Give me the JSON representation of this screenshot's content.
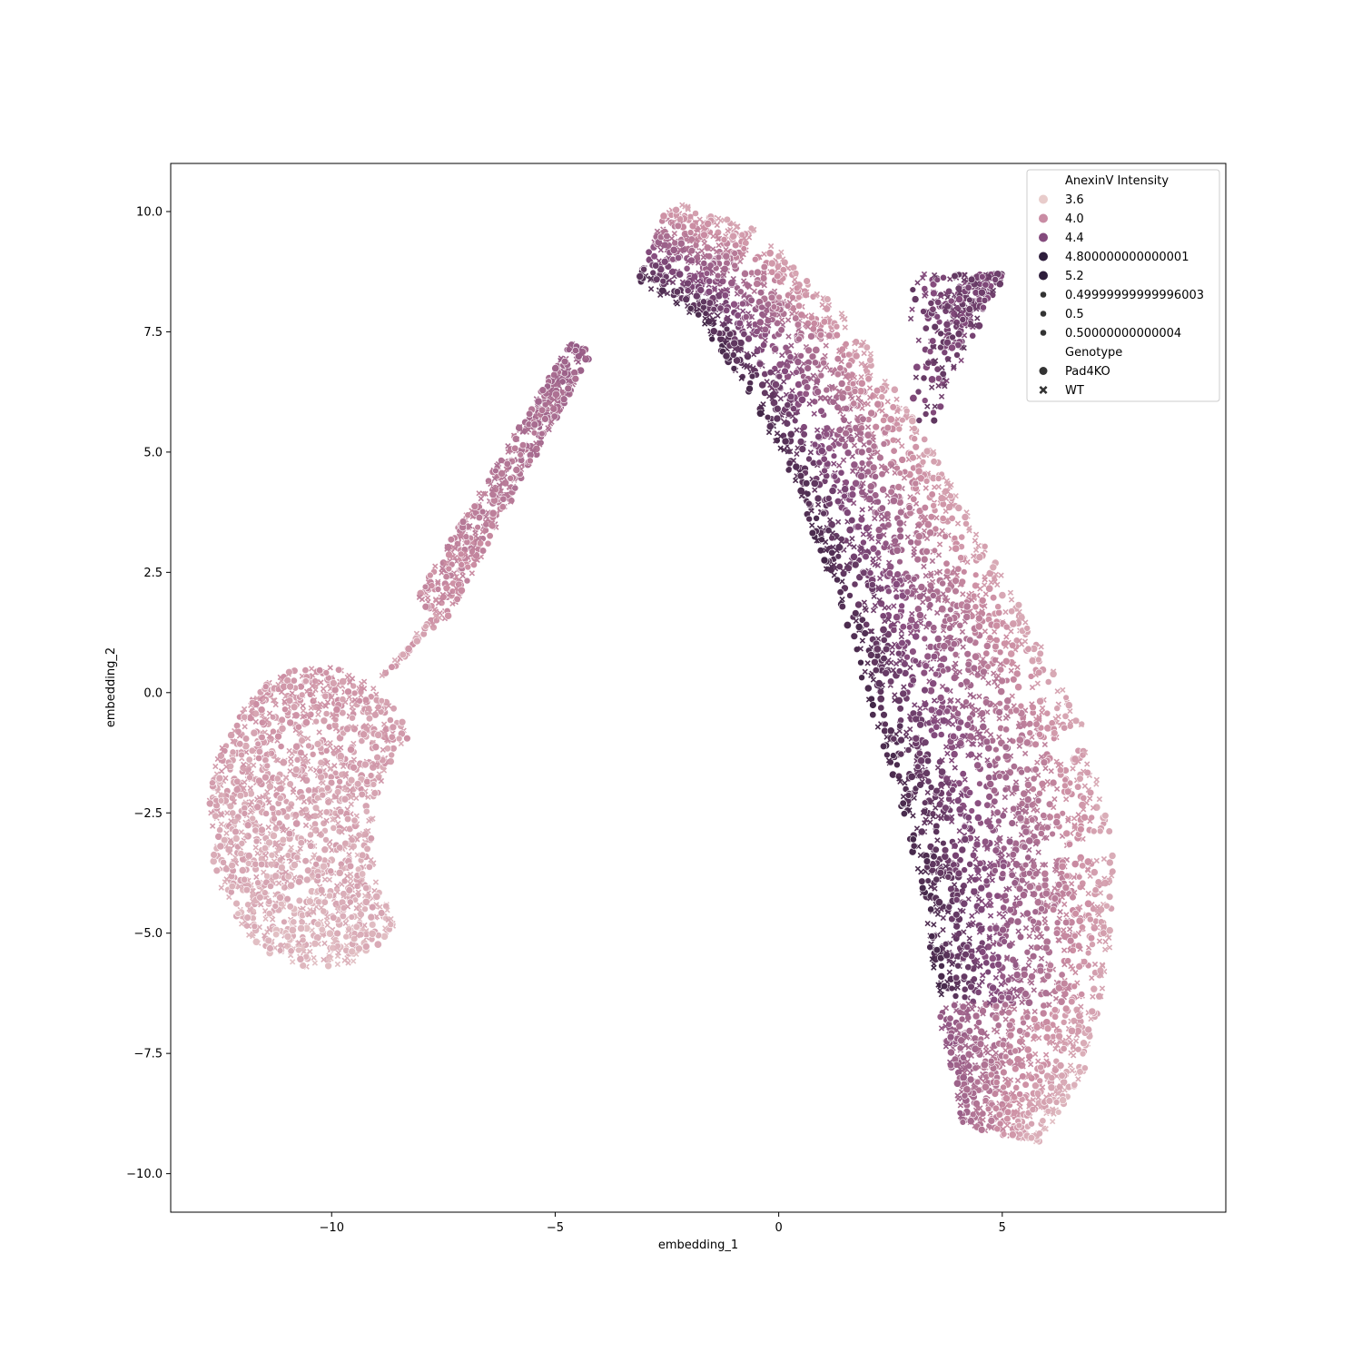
{
  "chart_data": {
    "type": "scatter",
    "title": "",
    "xlabel": "embedding_1",
    "ylabel": "embedding_2",
    "xlim": [
      -13.6,
      10.0
    ],
    "ylim": [
      -10.8,
      11.0
    ],
    "xticks": [
      -10,
      -5,
      0,
      5
    ],
    "xtick_labels": [
      "−10",
      "−5",
      "0",
      "5"
    ],
    "yticks": [
      -10.0,
      -7.5,
      -5.0,
      -2.5,
      0.0,
      2.5,
      5.0,
      7.5,
      10.0
    ],
    "ytick_labels": [
      "−10.0",
      "−7.5",
      "−5.0",
      "−2.5",
      "0.0",
      "2.5",
      "5.0",
      "7.5",
      "10.0"
    ],
    "grid": false,
    "legend_position": "top-right",
    "legend": {
      "hue_title": "AnexinV Intensity",
      "hue_entries": [
        {
          "label": "3.6",
          "color": "#e8cccb"
        },
        {
          "label": "4.0",
          "color": "#c98ca4"
        },
        {
          "label": "4.4",
          "color": "#844b7d"
        },
        {
          "label": "4.800000000000001",
          "color": "#2e1e3c"
        },
        {
          "label": "5.2",
          "color": "#2e1e3c"
        }
      ],
      "size_entries": [
        {
          "label": "0.49999999999996003"
        },
        {
          "label": "0.5"
        },
        {
          "label": "0.50000000000004"
        }
      ],
      "style_title": "Genotype",
      "style_entries": [
        {
          "label": "Pad4KO",
          "marker": "circle"
        },
        {
          "label": "WT",
          "marker": "x"
        }
      ]
    },
    "color_scale": {
      "min_value": 3.4,
      "max_value": 5.4,
      "colors": [
        "#ecd6d3",
        "#cc8ea3",
        "#844b7d",
        "#2a1a34"
      ]
    },
    "clusters": [
      {
        "name": "left blob",
        "x_range": [
          -12.6,
          -7.5
        ],
        "y_range": [
          -5.8,
          0.5
        ],
        "intensity_range": [
          3.6,
          4.1
        ]
      },
      {
        "name": "upper-left strip",
        "x_range": [
          -8.0,
          -4.3
        ],
        "y_range": [
          1.0,
          7.3
        ],
        "intensity_range": [
          3.8,
          4.5
        ]
      },
      {
        "name": "right main body",
        "x_range": [
          -3.5,
          8.9
        ],
        "y_range": [
          -9.8,
          10.1
        ],
        "intensity_range": [
          3.6,
          5.2
        ]
      }
    ],
    "marker_colors": {
      "legend_marker": "#333333"
    }
  }
}
